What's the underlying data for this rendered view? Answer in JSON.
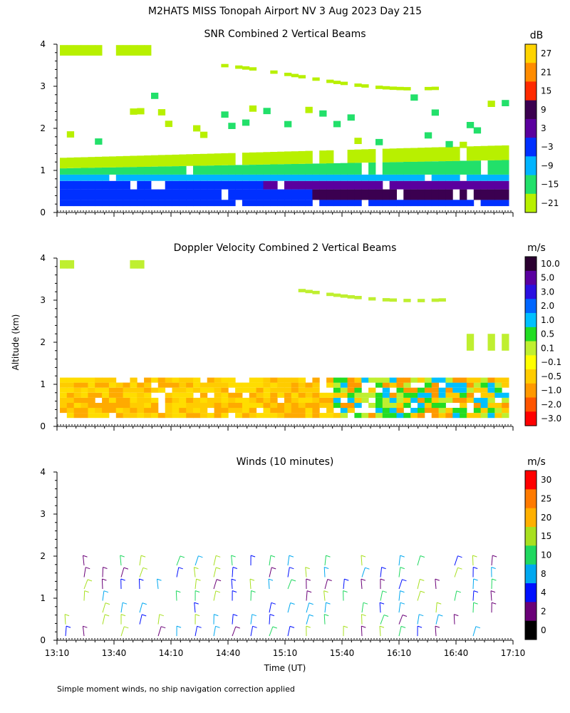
{
  "chart_data": {
    "type": "heatmap",
    "title": "M2HATS MISS Tonopah Airport NV   3 Aug 2023 Day 215",
    "xlabel": "Time (UT)",
    "ylabel": "Altitude (km)",
    "footnote": "Simple moment winds, no ship navigation correction applied",
    "x_ticks": [
      "13:10",
      "13:40",
      "14:10",
      "14:40",
      "15:10",
      "15:40",
      "16:10",
      "16:40",
      "17:10"
    ],
    "y_ticks": [
      "0",
      "1",
      "2",
      "3",
      "4"
    ],
    "ylim": [
      0,
      4
    ],
    "panels": [
      {
        "title": "SNR Combined 2 Vertical Beams",
        "unit": "dB",
        "colorbar_labels": [
          "27",
          "21",
          "15",
          "9",
          "3",
          "−3",
          "−9",
          "−15",
          "−21"
        ],
        "colorbar_colors": [
          "#ffd400",
          "#ff8c00",
          "#ff2a00",
          "#3b0050",
          "#5a009e",
          "#0030ff",
          "#00b4ff",
          "#22e06a",
          "#b8f000"
        ]
      },
      {
        "title": "Doppler Velocity Combined 2 Vertical Beams",
        "unit": "m/s",
        "colorbar_labels": [
          "10.0",
          "5.0",
          "3.0",
          "2.0",
          "1.0",
          "0.5",
          "0.1",
          "−0.1",
          "−0.5",
          "−1.0",
          "−2.0",
          "−3.0"
        ],
        "colorbar_colors": [
          "#2a0030",
          "#5a00a0",
          "#2a10e0",
          "#0066ff",
          "#00c0ff",
          "#22dd22",
          "#bfef30",
          "#ffff00",
          "#ffcc00",
          "#ff9900",
          "#ff5500",
          "#ff0000"
        ]
      },
      {
        "title": "Winds (10 minutes)",
        "unit": "m/s",
        "colorbar_labels": [
          "30",
          "25",
          "20",
          "15",
          "10",
          "8",
          "4",
          "2",
          "0"
        ],
        "colorbar_colors": [
          "#ff0000",
          "#ff7a00",
          "#ffb000",
          "#a8e020",
          "#20d860",
          "#00a8f0",
          "#0010ff",
          "#6a0078",
          "#000000"
        ]
      }
    ]
  }
}
